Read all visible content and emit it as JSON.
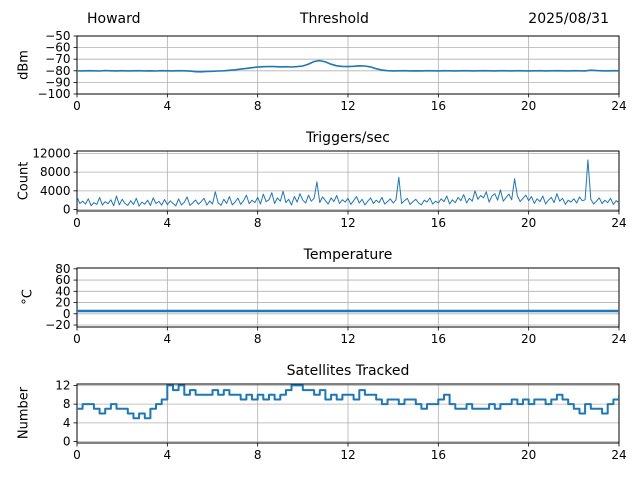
{
  "figure": {
    "line_color": "#1f77b4",
    "grid_color": "#b0b0b0",
    "axis_color": "#000000",
    "bg_color": "#ffffff",
    "text_color": "#000000"
  },
  "chart_data": [
    {
      "type": "line",
      "title_left": "Howard",
      "title": "Threshold",
      "title_right": "2025/08/31",
      "ylabel": "dBm",
      "xlim": [
        0,
        24
      ],
      "ylim": [
        -100,
        -50
      ],
      "xticks": [
        0,
        4,
        8,
        12,
        16,
        20,
        24
      ],
      "yticks": [
        -50,
        -60,
        -70,
        -80,
        -90,
        -100
      ],
      "grid": true,
      "x_start": 0,
      "x_step": 0.25,
      "values": [
        -80,
        -80.1,
        -79.9,
        -80,
        -80.2,
        -79.8,
        -80,
        -80.1,
        -79.9,
        -80.1,
        -80,
        -79.9,
        -80.1,
        -80,
        -80.2,
        -79.9,
        -80,
        -80.1,
        -79.9,
        -80,
        -80.3,
        -80.8,
        -80.9,
        -80.6,
        -80.4,
        -80.2,
        -80,
        -79.6,
        -79.1,
        -78.5,
        -77.9,
        -77.3,
        -76.8,
        -76.5,
        -76.3,
        -76.4,
        -76.6,
        -76.5,
        -76.7,
        -76.4,
        -75.9,
        -74.2,
        -72.0,
        -71.2,
        -72.3,
        -74.3,
        -75.7,
        -76.2,
        -76.4,
        -76.1,
        -75.7,
        -75.9,
        -76.6,
        -78.2,
        -79.4,
        -79.9,
        -80.1,
        -80,
        -79.9,
        -80.1,
        -80,
        -80.1,
        -79.9,
        -80,
        -80.1,
        -79.9,
        -80,
        -80.1,
        -80,
        -79.9,
        -80.1,
        -80,
        -79.9,
        -80,
        -80.1,
        -79.9,
        -80,
        -80.1,
        -79.9,
        -80,
        -80.1,
        -80,
        -79.9,
        -80.1,
        -80,
        -79.9,
        -80,
        -80.1,
        -79.9,
        -80,
        -80.1,
        -79.5,
        -79.8,
        -80,
        -80.1,
        -79.9,
        -80
      ]
    },
    {
      "type": "line",
      "title": "Triggers/sec",
      "ylabel": "Count",
      "xlim": [
        0,
        24
      ],
      "ylim": [
        -300,
        12500
      ],
      "xticks": [
        0,
        4,
        8,
        12,
        16,
        20,
        24
      ],
      "yticks": [
        0,
        4000,
        8000,
        12000
      ],
      "grid": true,
      "x_start": 0,
      "x_step": 0.125,
      "values": [
        2700,
        1300,
        1800,
        1200,
        2300,
        850,
        1500,
        1100,
        2600,
        950,
        1700,
        1250,
        2100,
        800,
        2900,
        1000,
        2200,
        1300,
        900,
        1900,
        1100,
        2400,
        750,
        1600,
        1150,
        2000,
        900,
        2500,
        1300,
        1750,
        950,
        2150,
        1050,
        1850,
        1300,
        800,
        2300,
        1000,
        1550,
        2700,
        900,
        1400,
        2050,
        1150,
        1700,
        2400,
        950,
        1850,
        1200,
        3800,
        1450,
        900,
        2200,
        1300,
        2800,
        1000,
        1600,
        2450,
        1100,
        1900,
        3100,
        1250,
        2000,
        1500,
        2600,
        1200,
        3300,
        1700,
        2100,
        3600,
        1300,
        2500,
        1800,
        3900,
        1500,
        2200,
        1000,
        2800,
        1600,
        3400,
        2000,
        1400,
        3100,
        1800,
        2400,
        5900,
        1500,
        2700,
        1900,
        1200,
        2500,
        1700,
        3000,
        1300,
        2100,
        1600,
        2400,
        1100,
        1900,
        2800,
        1400,
        2200,
        1000,
        1800,
        2500,
        1300,
        2000,
        1500,
        2600,
        1200,
        1700,
        2300,
        1400,
        2100,
        6900,
        1300,
        1900,
        2400,
        1100,
        1700,
        2200,
        1400,
        1000,
        2000,
        1600,
        2500,
        1200,
        1800,
        1400,
        2300,
        1700,
        2900,
        1200,
        2100,
        1500,
        2600,
        1900,
        3200,
        1400,
        2400,
        1800,
        4000,
        2200,
        3000,
        2500,
        3800,
        1600,
        2900,
        3400,
        2000,
        4200,
        1800,
        2600,
        3300,
        2100,
        6600,
        2900,
        1700,
        2400,
        3100,
        1900,
        2800,
        1300,
        2300,
        1700,
        2900,
        1200,
        2000,
        2600,
        1500,
        3400,
        1800,
        2400,
        1100,
        2000,
        1600,
        2300,
        1400,
        2700,
        1900,
        2100,
        10600,
        2200,
        1200,
        1800,
        2500,
        1300,
        2000,
        1500,
        2400,
        1100,
        1900,
        1500
      ]
    },
    {
      "type": "line",
      "title": "Temperature",
      "ylabel": "°C",
      "xlim": [
        0,
        24
      ],
      "ylim": [
        -23.5,
        81.5
      ],
      "xticks": [
        0,
        4,
        8,
        12,
        16,
        20,
        24
      ],
      "yticks": [
        -20,
        0,
        20,
        40,
        60,
        80
      ],
      "grid": true,
      "x_start": 0,
      "x_step": 1,
      "values": [
        5,
        5,
        5,
        5,
        5,
        5,
        5,
        5,
        5,
        5,
        5,
        5,
        5,
        5,
        5,
        5,
        5,
        5,
        5,
        5,
        5,
        5,
        5,
        5,
        5
      ]
    },
    {
      "type": "step",
      "title": "Satellites Tracked",
      "ylabel": "Number",
      "xlim": [
        0,
        24
      ],
      "ylim": [
        -0.3,
        12.3
      ],
      "xticks": [
        0,
        4,
        8,
        12,
        16,
        20,
        24
      ],
      "yticks": [
        0,
        4,
        8,
        12
      ],
      "grid": true,
      "x_start": 0,
      "x_step": 0.25,
      "values": [
        7,
        8,
        8,
        7,
        6,
        7,
        8,
        7,
        7,
        6,
        5,
        6,
        5,
        7,
        8,
        9,
        12,
        11,
        12,
        10,
        11,
        10,
        10,
        10,
        11,
        10,
        11,
        10,
        10,
        9,
        10,
        9,
        10,
        9,
        10,
        9,
        10,
        11,
        12,
        12,
        11,
        11,
        10,
        11,
        9,
        10,
        9,
        10,
        10,
        9,
        11,
        10,
        10,
        9,
        8,
        9,
        9,
        8,
        9,
        9,
        8,
        7,
        8,
        8,
        9,
        10,
        8,
        7,
        7,
        8,
        7,
        7,
        7,
        8,
        7,
        8,
        8,
        9,
        8,
        9,
        8,
        9,
        9,
        8,
        9,
        10,
        9,
        8,
        7,
        6,
        8,
        7,
        7,
        6,
        8,
        9,
        10
      ]
    }
  ]
}
